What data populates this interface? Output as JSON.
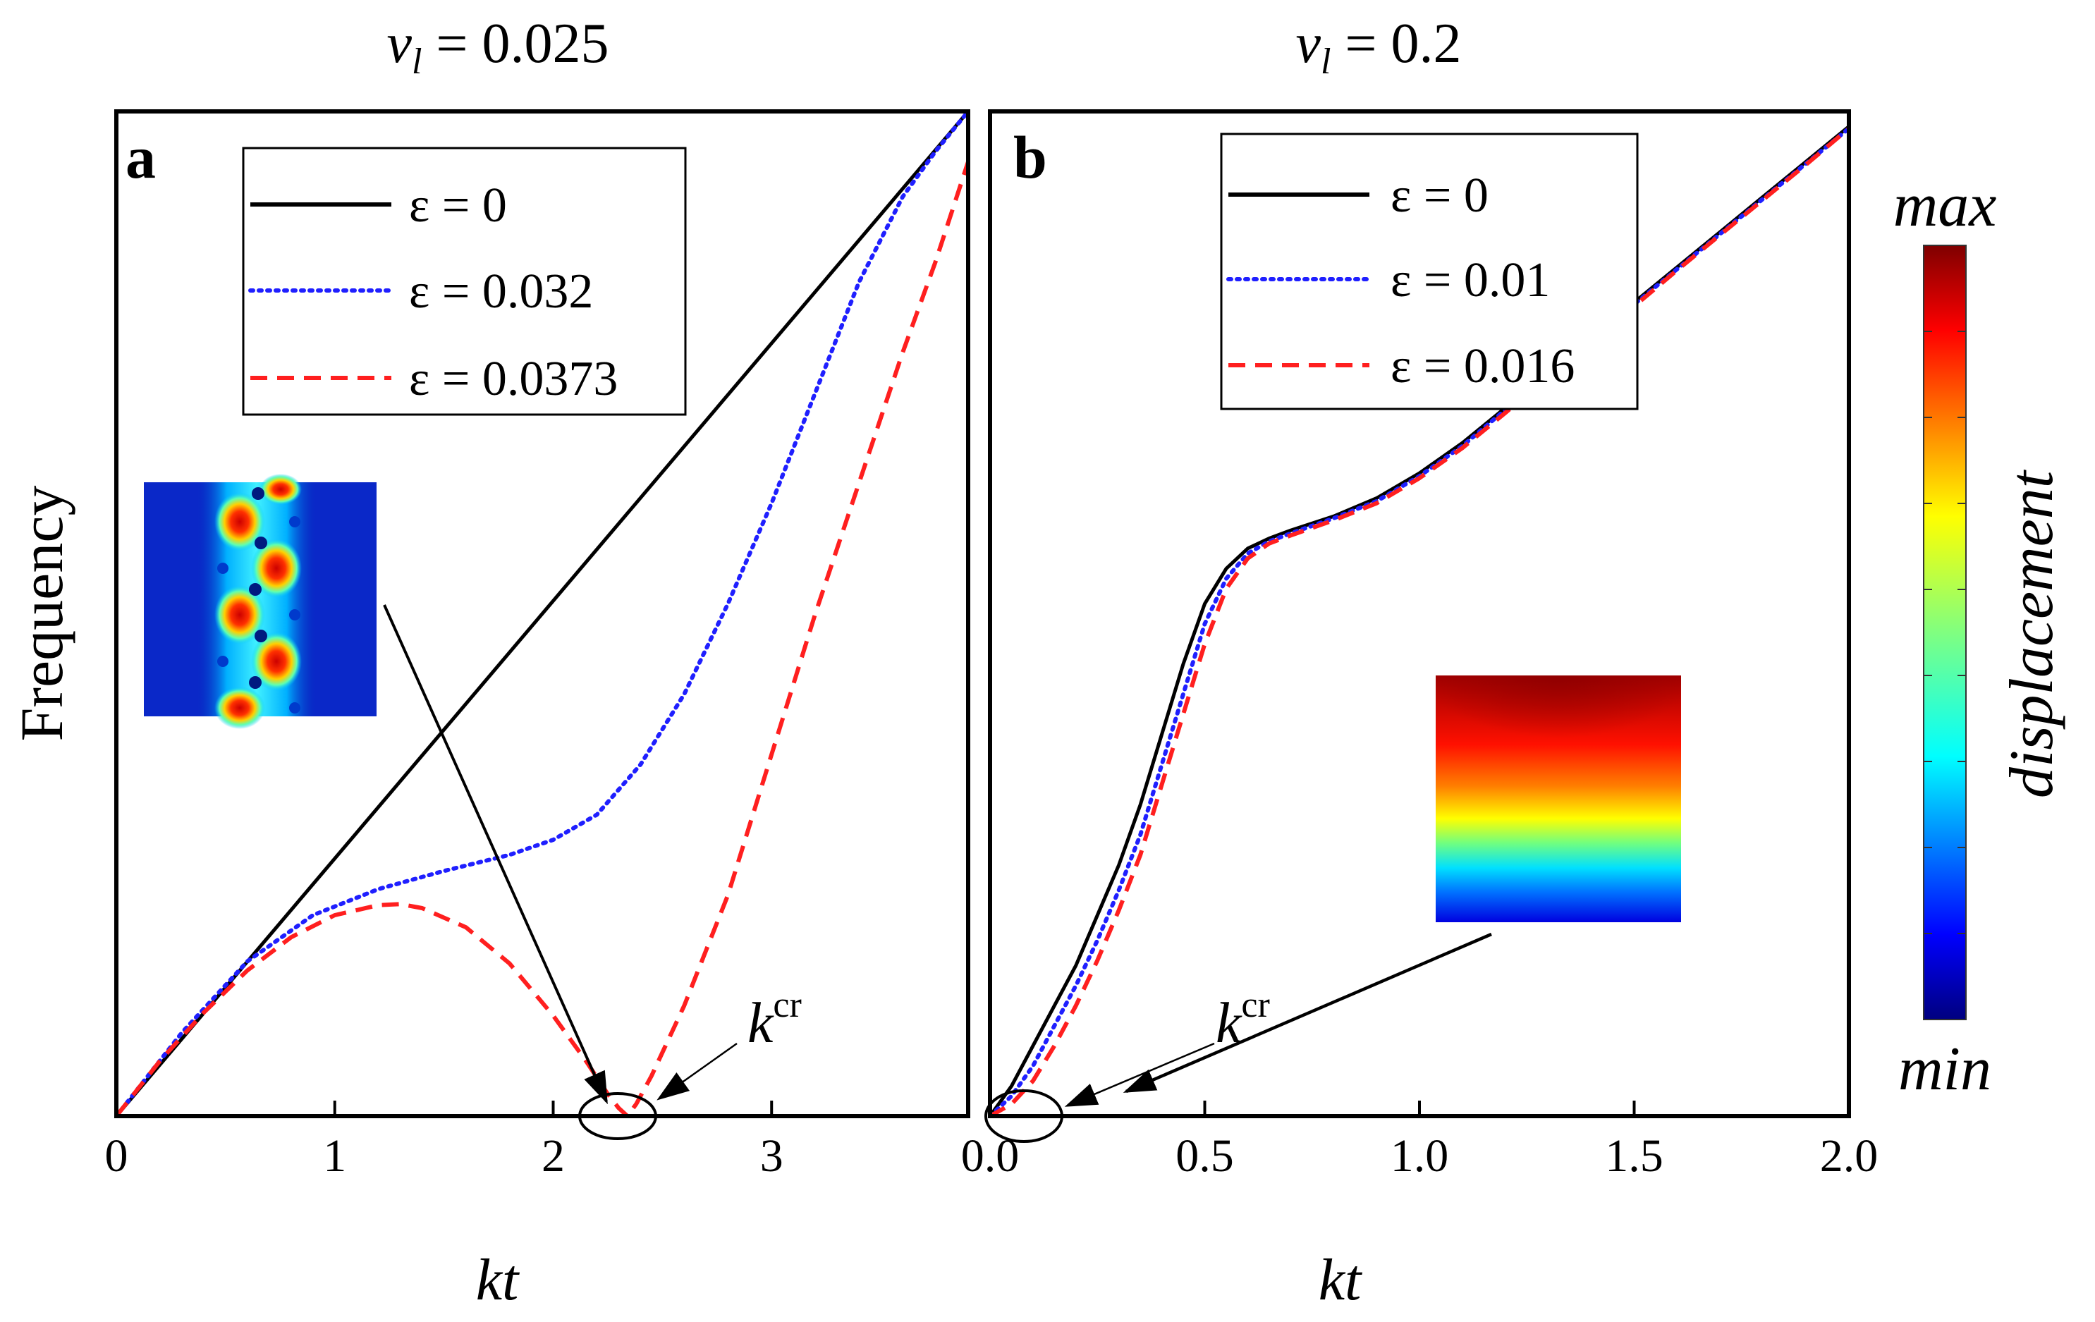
{
  "colors": {
    "solid": "#000000",
    "dotted": "#1f1fff",
    "dashed": "#ff1f1f"
  },
  "y_axis_label": "Frequency",
  "colorbar": {
    "max_label": "max",
    "min_label": "min",
    "title": "displacement",
    "colormap": "jet"
  },
  "chart_data": [
    {
      "type": "line",
      "panel_letter": "a",
      "title_symbol": "v",
      "title_subscript": "l",
      "title_value": " = 0.025",
      "xlabel": "kt",
      "ylabel": "Frequency",
      "xlim": [
        0,
        3.9
      ],
      "ylim": [
        0,
        1
      ],
      "xticks": [
        0,
        1,
        2,
        3
      ],
      "xtick_labels": [
        "0",
        "1",
        "2",
        "3"
      ],
      "ytick_labels": [],
      "legend_position": "top-right",
      "annotation": {
        "base": "k",
        "sup": "cr",
        "at_x": 2.34
      },
      "series": [
        {
          "name": "ε = 0",
          "style": "solid",
          "x": [
            0,
            3.9
          ],
          "y": [
            0,
            1.0
          ]
        },
        {
          "name": "ε = 0.032",
          "style": "dotted",
          "x": [
            0,
            0.3,
            0.6,
            0.9,
            1.2,
            1.5,
            1.8,
            2.0,
            2.2,
            2.4,
            2.6,
            2.8,
            3.0,
            3.2,
            3.4,
            3.6,
            3.75,
            3.9
          ],
          "y": [
            0,
            0.083,
            0.154,
            0.2,
            0.226,
            0.244,
            0.26,
            0.275,
            0.3,
            0.35,
            0.42,
            0.51,
            0.61,
            0.72,
            0.83,
            0.915,
            0.96,
            1.0
          ]
        },
        {
          "name": "ε = 0.0373",
          "style": "dashed",
          "x": [
            0,
            0.2,
            0.4,
            0.6,
            0.8,
            1.0,
            1.2,
            1.3,
            1.4,
            1.6,
            1.8,
            2.0,
            2.15,
            2.25,
            2.3,
            2.34,
            2.38,
            2.45,
            2.6,
            2.8,
            3.0,
            3.2,
            3.4,
            3.6,
            3.75,
            3.9
          ],
          "y": [
            0,
            0.055,
            0.103,
            0.145,
            0.178,
            0.2,
            0.21,
            0.211,
            0.207,
            0.188,
            0.152,
            0.1,
            0.055,
            0.022,
            0.008,
            0.0,
            0.012,
            0.04,
            0.11,
            0.22,
            0.36,
            0.5,
            0.63,
            0.76,
            0.85,
            0.95
          ]
        }
      ]
    },
    {
      "type": "line",
      "panel_letter": "b",
      "title_symbol": "v",
      "title_subscript": "l",
      "title_value": " = 0.2",
      "xlabel": "kt",
      "ylabel": "Frequency",
      "xlim": [
        0,
        2.0
      ],
      "ylim": [
        0,
        1
      ],
      "xticks": [
        0,
        0.5,
        1.0,
        1.5,
        2.0
      ],
      "xtick_labels": [
        "0.0",
        "0.5",
        "1.0",
        "1.5",
        "2.0"
      ],
      "ytick_labels": [],
      "legend_position": "top-right",
      "annotation": {
        "base": "k",
        "sup": "cr",
        "at_x": 0.02
      },
      "series": [
        {
          "name": "ε = 0",
          "style": "solid",
          "x": [
            0,
            0.05,
            0.1,
            0.15,
            0.2,
            0.25,
            0.3,
            0.35,
            0.4,
            0.45,
            0.5,
            0.55,
            0.6,
            0.65,
            0.7,
            0.8,
            0.9,
            1.0,
            1.1,
            1.2,
            1.3,
            1.4,
            1.5,
            1.6,
            1.7,
            1.8,
            1.9,
            2.0
          ],
          "y": [
            0,
            0.03,
            0.07,
            0.11,
            0.15,
            0.2,
            0.25,
            0.31,
            0.38,
            0.45,
            0.51,
            0.545,
            0.565,
            0.575,
            0.583,
            0.597,
            0.615,
            0.64,
            0.67,
            0.705,
            0.74,
            0.775,
            0.81,
            0.845,
            0.88,
            0.915,
            0.95,
            0.985
          ]
        },
        {
          "name": "ε = 0.01",
          "style": "dotted",
          "x": [
            0,
            0.05,
            0.1,
            0.15,
            0.2,
            0.25,
            0.3,
            0.35,
            0.4,
            0.45,
            0.5,
            0.55,
            0.6,
            0.65,
            0.7,
            0.8,
            0.9,
            1.0,
            1.1,
            1.2,
            1.3,
            1.4,
            1.5,
            1.6,
            1.7,
            1.8,
            1.9,
            2.0
          ],
          "y": [
            0,
            0.02,
            0.05,
            0.09,
            0.13,
            0.175,
            0.225,
            0.28,
            0.35,
            0.42,
            0.49,
            0.535,
            0.56,
            0.572,
            0.58,
            0.595,
            0.612,
            0.637,
            0.667,
            0.703,
            0.738,
            0.773,
            0.808,
            0.843,
            0.878,
            0.913,
            0.948,
            0.983
          ]
        },
        {
          "name": "ε = 0.016",
          "style": "dashed",
          "x": [
            0,
            0.05,
            0.1,
            0.15,
            0.2,
            0.25,
            0.3,
            0.35,
            0.4,
            0.45,
            0.5,
            0.55,
            0.6,
            0.65,
            0.7,
            0.8,
            0.9,
            1.0,
            1.1,
            1.2,
            1.3,
            1.4,
            1.5,
            1.6,
            1.7,
            1.8,
            1.9,
            2.0
          ],
          "y": [
            0,
            0.012,
            0.035,
            0.07,
            0.11,
            0.155,
            0.205,
            0.26,
            0.33,
            0.4,
            0.47,
            0.525,
            0.555,
            0.57,
            0.578,
            0.593,
            0.61,
            0.635,
            0.665,
            0.7,
            0.736,
            0.771,
            0.806,
            0.842,
            0.877,
            0.912,
            0.947,
            0.983
          ]
        }
      ]
    }
  ]
}
